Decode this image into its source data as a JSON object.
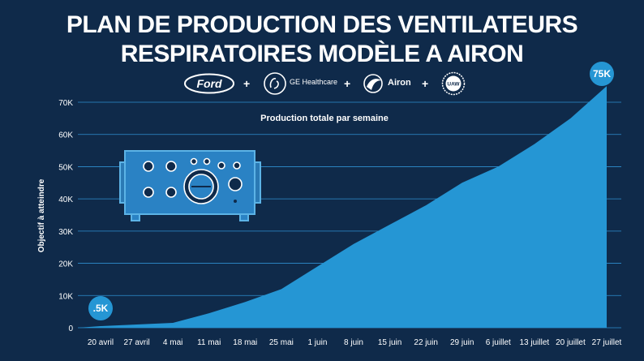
{
  "header": {
    "title_line1": "PLAN DE PRODUCTION DES VENTILATEURS",
    "title_line2": "RESPIRATOIRES MODÈLE A AIRON"
  },
  "logos": {
    "ford": "Ford",
    "ge": "GE Healthcare",
    "airon": "Airon",
    "uaw": "UAW",
    "plus": "+"
  },
  "colors": {
    "background": "#0f2a4a",
    "area": "#2596d4",
    "grid": "#2f8fd0",
    "text": "#ffffff",
    "ventilator": "#5cb3e6"
  },
  "chart_data": {
    "type": "area",
    "title": "Production totale par semaine",
    "ylabel": "Objectif à atteindre",
    "xlabel": "",
    "categories": [
      "20 avril",
      "27 avril",
      "4 mai",
      "11 mai",
      "18 mai",
      "25 mai",
      "1 juin",
      "8 juin",
      "15 juin",
      "22 juin",
      "29 juin",
      "6 juillet",
      "13 juillet",
      "20 juillet",
      "27 juillet"
    ],
    "values": [
      500,
      1000,
      1500,
      4500,
      8000,
      12000,
      19000,
      26000,
      32000,
      38000,
      45000,
      50000,
      57000,
      65000,
      75000
    ],
    "ylim": [
      0,
      70000
    ],
    "yticks": [
      0,
      10000,
      20000,
      30000,
      40000,
      50000,
      60000,
      70000
    ],
    "ytick_labels": [
      "0",
      "10K",
      "20K",
      "30K",
      "40K",
      "50K",
      "60K",
      "70K"
    ],
    "grid": true,
    "annotations": [
      {
        "label": ".5K",
        "category": "20 avril",
        "value": 500
      },
      {
        "label": "75K",
        "category": "27 juillet",
        "value": 75000
      }
    ]
  }
}
